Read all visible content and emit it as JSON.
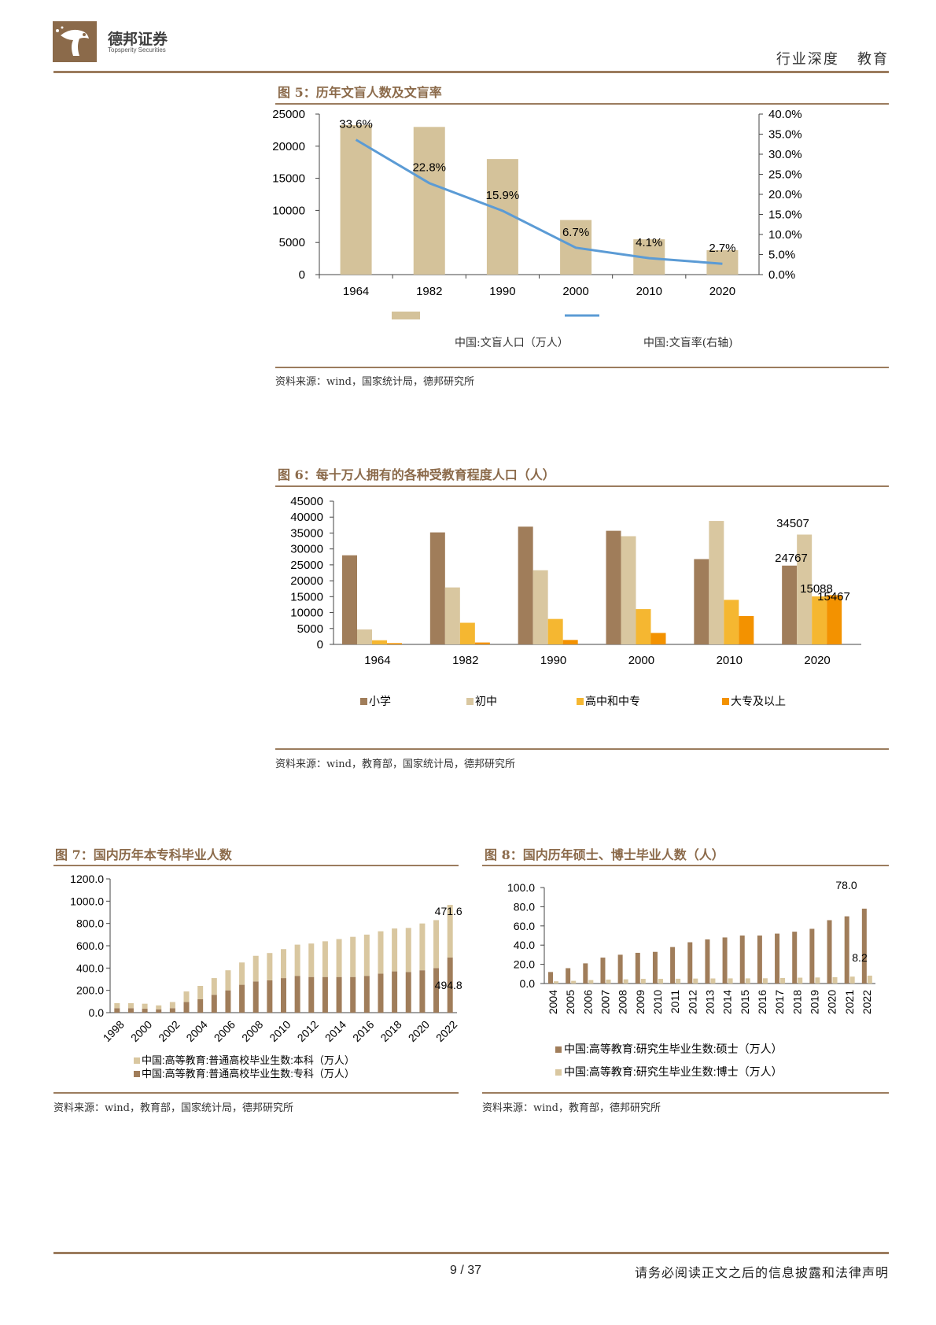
{
  "header": {
    "logo_cn": "德邦证券",
    "logo_en": "Topsperity Securities",
    "section": "行业深度   教育"
  },
  "fig5": {
    "title": "图 5：历年文盲人数及文盲率",
    "source": "资料来源：wind，国家统计局，德邦研究所",
    "legend_bar": "中国:文盲人口（万人）",
    "legend_line": "中国:文盲率(右轴)"
  },
  "fig6": {
    "title": "图 6：每十万人拥有的各种受教育程度人口（人）",
    "source": "资料来源：wind，教育部，国家统计局，德邦研究所",
    "legend": [
      "小学",
      "初中",
      "高中和中专",
      "大专及以上"
    ]
  },
  "fig7": {
    "title": "图 7：国内历年本专科毕业人数",
    "source": "资料来源：wind，教育部，国家统计局，德邦研究所",
    "legend": [
      "中国:高等教育:普通高校毕业生数:本科（万人）",
      "中国:高等教育:普通高校毕业生数:专科（万人）"
    ]
  },
  "fig8": {
    "title": "图 8：国内历年硕士、博士毕业人数（人）",
    "source": "资料来源：wind，教育部，德邦研究所",
    "legend": [
      "中国:高等教育:研究生毕业生数:硕士（万人）",
      "中国:高等教育:研究生毕业生数:博士（万人）"
    ]
  },
  "footer": {
    "page": "9 / 37",
    "note": "请务必阅读正文之后的信息披露和法律声明"
  },
  "colors": {
    "brand": "#8b6a4a",
    "bar_tan": "#d4c29a",
    "line_blue": "#5b9bd5",
    "primary_brown": "#a07d5a",
    "middle_tan": "#d9c7a0",
    "high_amber": "#f5b731",
    "college_orange": "#f39200"
  },
  "chart_data": [
    {
      "type": "bar",
      "name": "fig5",
      "categories": [
        "1964",
        "1982",
        "1990",
        "2000",
        "2010",
        "2020"
      ],
      "series": [
        {
          "name": "中国:文盲人口（万人）",
          "axis": "left",
          "values": [
            23300,
            23000,
            18000,
            8500,
            5500,
            3800
          ]
        },
        {
          "name": "中国:文盲率(右轴)",
          "type": "line",
          "axis": "right",
          "values": [
            33.6,
            22.8,
            15.9,
            6.7,
            4.1,
            2.7
          ],
          "labels": [
            "33.6%",
            "22.8%",
            "15.9%",
            "6.7%",
            "4.1%",
            "2.7%"
          ]
        }
      ],
      "ylim": [
        0,
        25000
      ],
      "yticks": [
        "0",
        "5000",
        "10000",
        "15000",
        "20000",
        "25000"
      ],
      "y2lim": [
        0,
        40
      ],
      "y2ticks": [
        "0.0%",
        "5.0%",
        "10.0%",
        "15.0%",
        "20.0%",
        "25.0%",
        "30.0%",
        "35.0%",
        "40.0%"
      ]
    },
    {
      "type": "bar",
      "name": "fig6",
      "categories": [
        "1964",
        "1982",
        "1990",
        "2000",
        "2010",
        "2020"
      ],
      "series": [
        {
          "name": "小学",
          "values": [
            28000,
            35200,
            37000,
            35700,
            26800,
            24767
          ]
        },
        {
          "name": "初中",
          "values": [
            4700,
            17900,
            23300,
            34000,
            38800,
            34507
          ]
        },
        {
          "name": "高中和中专",
          "values": [
            1300,
            6800,
            8000,
            11100,
            14000,
            15088
          ]
        },
        {
          "name": "大专及以上",
          "values": [
            400,
            600,
            1400,
            3600,
            8900,
            15467
          ]
        }
      ],
      "value_labels": {
        "2020": [
          "24767",
          "34507",
          "15088",
          "15467"
        ]
      },
      "ylim": [
        0,
        45000
      ],
      "yticks": [
        "0",
        "5000",
        "10000",
        "15000",
        "20000",
        "25000",
        "30000",
        "35000",
        "40000",
        "45000"
      ]
    },
    {
      "type": "bar",
      "stacked": true,
      "name": "fig7",
      "categories": [
        "1998",
        "1999",
        "2000",
        "2001",
        "2002",
        "2003",
        "2004",
        "2005",
        "2006",
        "2007",
        "2008",
        "2009",
        "2010",
        "2011",
        "2012",
        "2013",
        "2014",
        "2015",
        "2016",
        "2017",
        "2018",
        "2019",
        "2020",
        "2021",
        "2022"
      ],
      "xticks": [
        "1998",
        "2000",
        "2002",
        "2004",
        "2006",
        "2008",
        "2010",
        "2012",
        "2014",
        "2016",
        "2018",
        "2020",
        "2022"
      ],
      "series": [
        {
          "name": "中国:高等教育:普通高校毕业生数:专科（万人）",
          "values": [
            40,
            40,
            35,
            30,
            40,
            95,
            120,
            160,
            200,
            250,
            280,
            290,
            310,
            330,
            320,
            320,
            320,
            320,
            330,
            350,
            370,
            365,
            380,
            400,
            494.8
          ]
        },
        {
          "name": "中国:高等教育:普通高校毕业生数:本科（万人）",
          "values": [
            45,
            45,
            45,
            35,
            55,
            95,
            120,
            150,
            180,
            200,
            230,
            245,
            260,
            280,
            300,
            320,
            340,
            360,
            370,
            380,
            385,
            395,
            420,
            430,
            471.6
          ]
        }
      ],
      "value_labels": [
        "471.6",
        "494.8"
      ],
      "ylim": [
        0,
        1200
      ],
      "yticks": [
        "0.0",
        "200.0",
        "400.0",
        "600.0",
        "800.0",
        "1000.0",
        "1200.0"
      ]
    },
    {
      "type": "bar",
      "name": "fig8",
      "categories": [
        "2004",
        "2005",
        "2006",
        "2007",
        "2008",
        "2009",
        "2010",
        "2011",
        "2012",
        "2013",
        "2014",
        "2015",
        "2016",
        "2017",
        "2018",
        "2019",
        "2020",
        "2021",
        "2022"
      ],
      "series": [
        {
          "name": "中国:高等教育:研究生毕业生数:硕士（万人）",
          "values": [
            12,
            16,
            21,
            27,
            30,
            32,
            33,
            38,
            43,
            46,
            48,
            50,
            50,
            52,
            54,
            57,
            66,
            70,
            78.0
          ]
        },
        {
          "name": "中国:高等教育:研究生毕业生数:博士（万人）",
          "values": [
            2.3,
            2.8,
            3.6,
            4.1,
            4.4,
            4.9,
            4.9,
            5.0,
            5.2,
            5.3,
            5.4,
            5.4,
            5.5,
            5.8,
            6.1,
            6.3,
            6.6,
            7.2,
            8.2
          ]
        }
      ],
      "value_labels": [
        "78.0",
        "8.2"
      ],
      "ylim": [
        0,
        100
      ],
      "yticks": [
        "0.0",
        "20.0",
        "40.0",
        "60.0",
        "80.0",
        "100.0"
      ]
    }
  ]
}
